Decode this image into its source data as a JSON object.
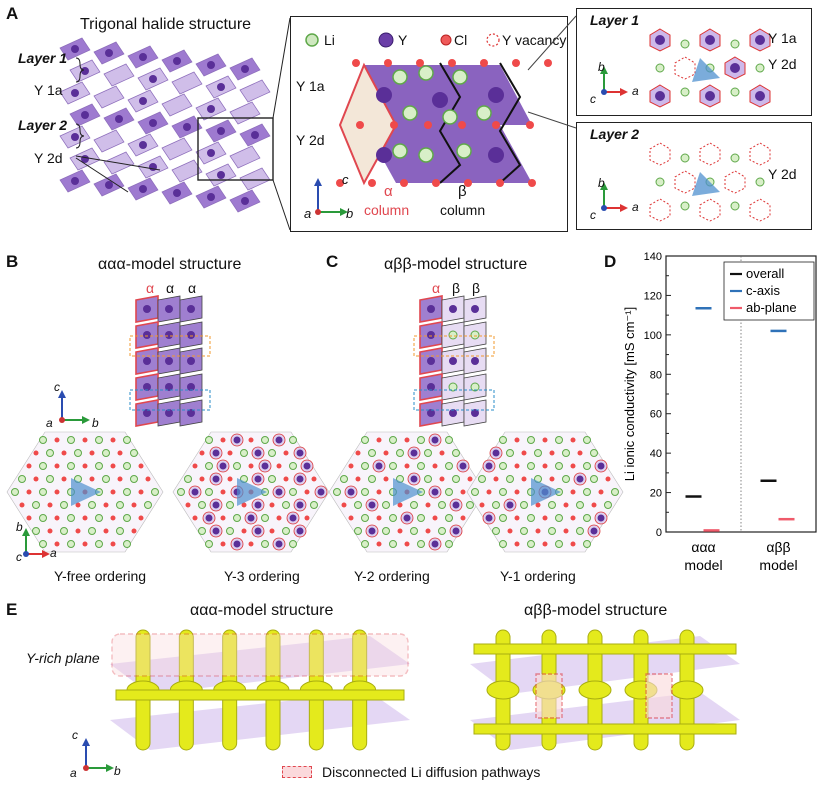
{
  "panels": {
    "a": "A",
    "b": "B",
    "c": "C",
    "d": "D",
    "e": "E"
  },
  "panel_a": {
    "title": "Trigonal halide structure",
    "layer1": "Layer 1",
    "layer2": "Layer 2",
    "y1a": "Y 1a",
    "y2d": "Y 2d",
    "legend": {
      "li": "Li",
      "y": "Y",
      "cl": "Cl",
      "yvac": "Y vacancy"
    },
    "alpha": "α",
    "beta": "β",
    "column": "column",
    "axes": {
      "a": "a",
      "b": "b",
      "c": "c"
    },
    "inset1": {
      "title": "Layer 1",
      "y1a": "Y 1a",
      "y2d": "Y 2d"
    },
    "inset2": {
      "title": "Layer 2",
      "y2d": "Y 2d"
    }
  },
  "panel_b": {
    "title": "ααα-model structure",
    "cols": [
      "α",
      "α",
      "α"
    ],
    "left": "Y-free ordering",
    "right": "Y-3 ordering"
  },
  "panel_c": {
    "title": "αββ-model structure",
    "cols": [
      "α",
      "β",
      "β"
    ],
    "left": "Y-2 ordering",
    "right": "Y-1 ordering"
  },
  "panel_e": {
    "left_title": "ααα-model structure",
    "right_title": "αββ-model structure",
    "yrich": "Y-rich plane",
    "caption": "Disconnected Li diffusion pathways"
  },
  "colors": {
    "alpha": "#e0474f",
    "blue": "#3b7cc2",
    "purple": "#7a4bb0",
    "iso": "#e4ea1c"
  },
  "chart_data": {
    "type": "scatter",
    "ylabel": "Li ionic conductivity [mS cm⁻¹]",
    "ylim": [
      0,
      140
    ],
    "yticks": [
      0,
      20,
      40,
      60,
      80,
      100,
      120,
      140
    ],
    "categories": [
      "ααα model",
      "αββ model"
    ],
    "category_lines": [
      [
        "ααα",
        "model"
      ],
      [
        "αββ",
        "model"
      ]
    ],
    "series": [
      {
        "name": "overall",
        "values": [
          18,
          26
        ],
        "color": "#111111"
      },
      {
        "name": "c-axis",
        "values": [
          113.5,
          102
        ],
        "color": "#2f72b8"
      },
      {
        "name": "ab-plane",
        "values": [
          0.8,
          6.5
        ],
        "color": "#ef5a6a"
      }
    ],
    "legend_position": "top-right"
  }
}
